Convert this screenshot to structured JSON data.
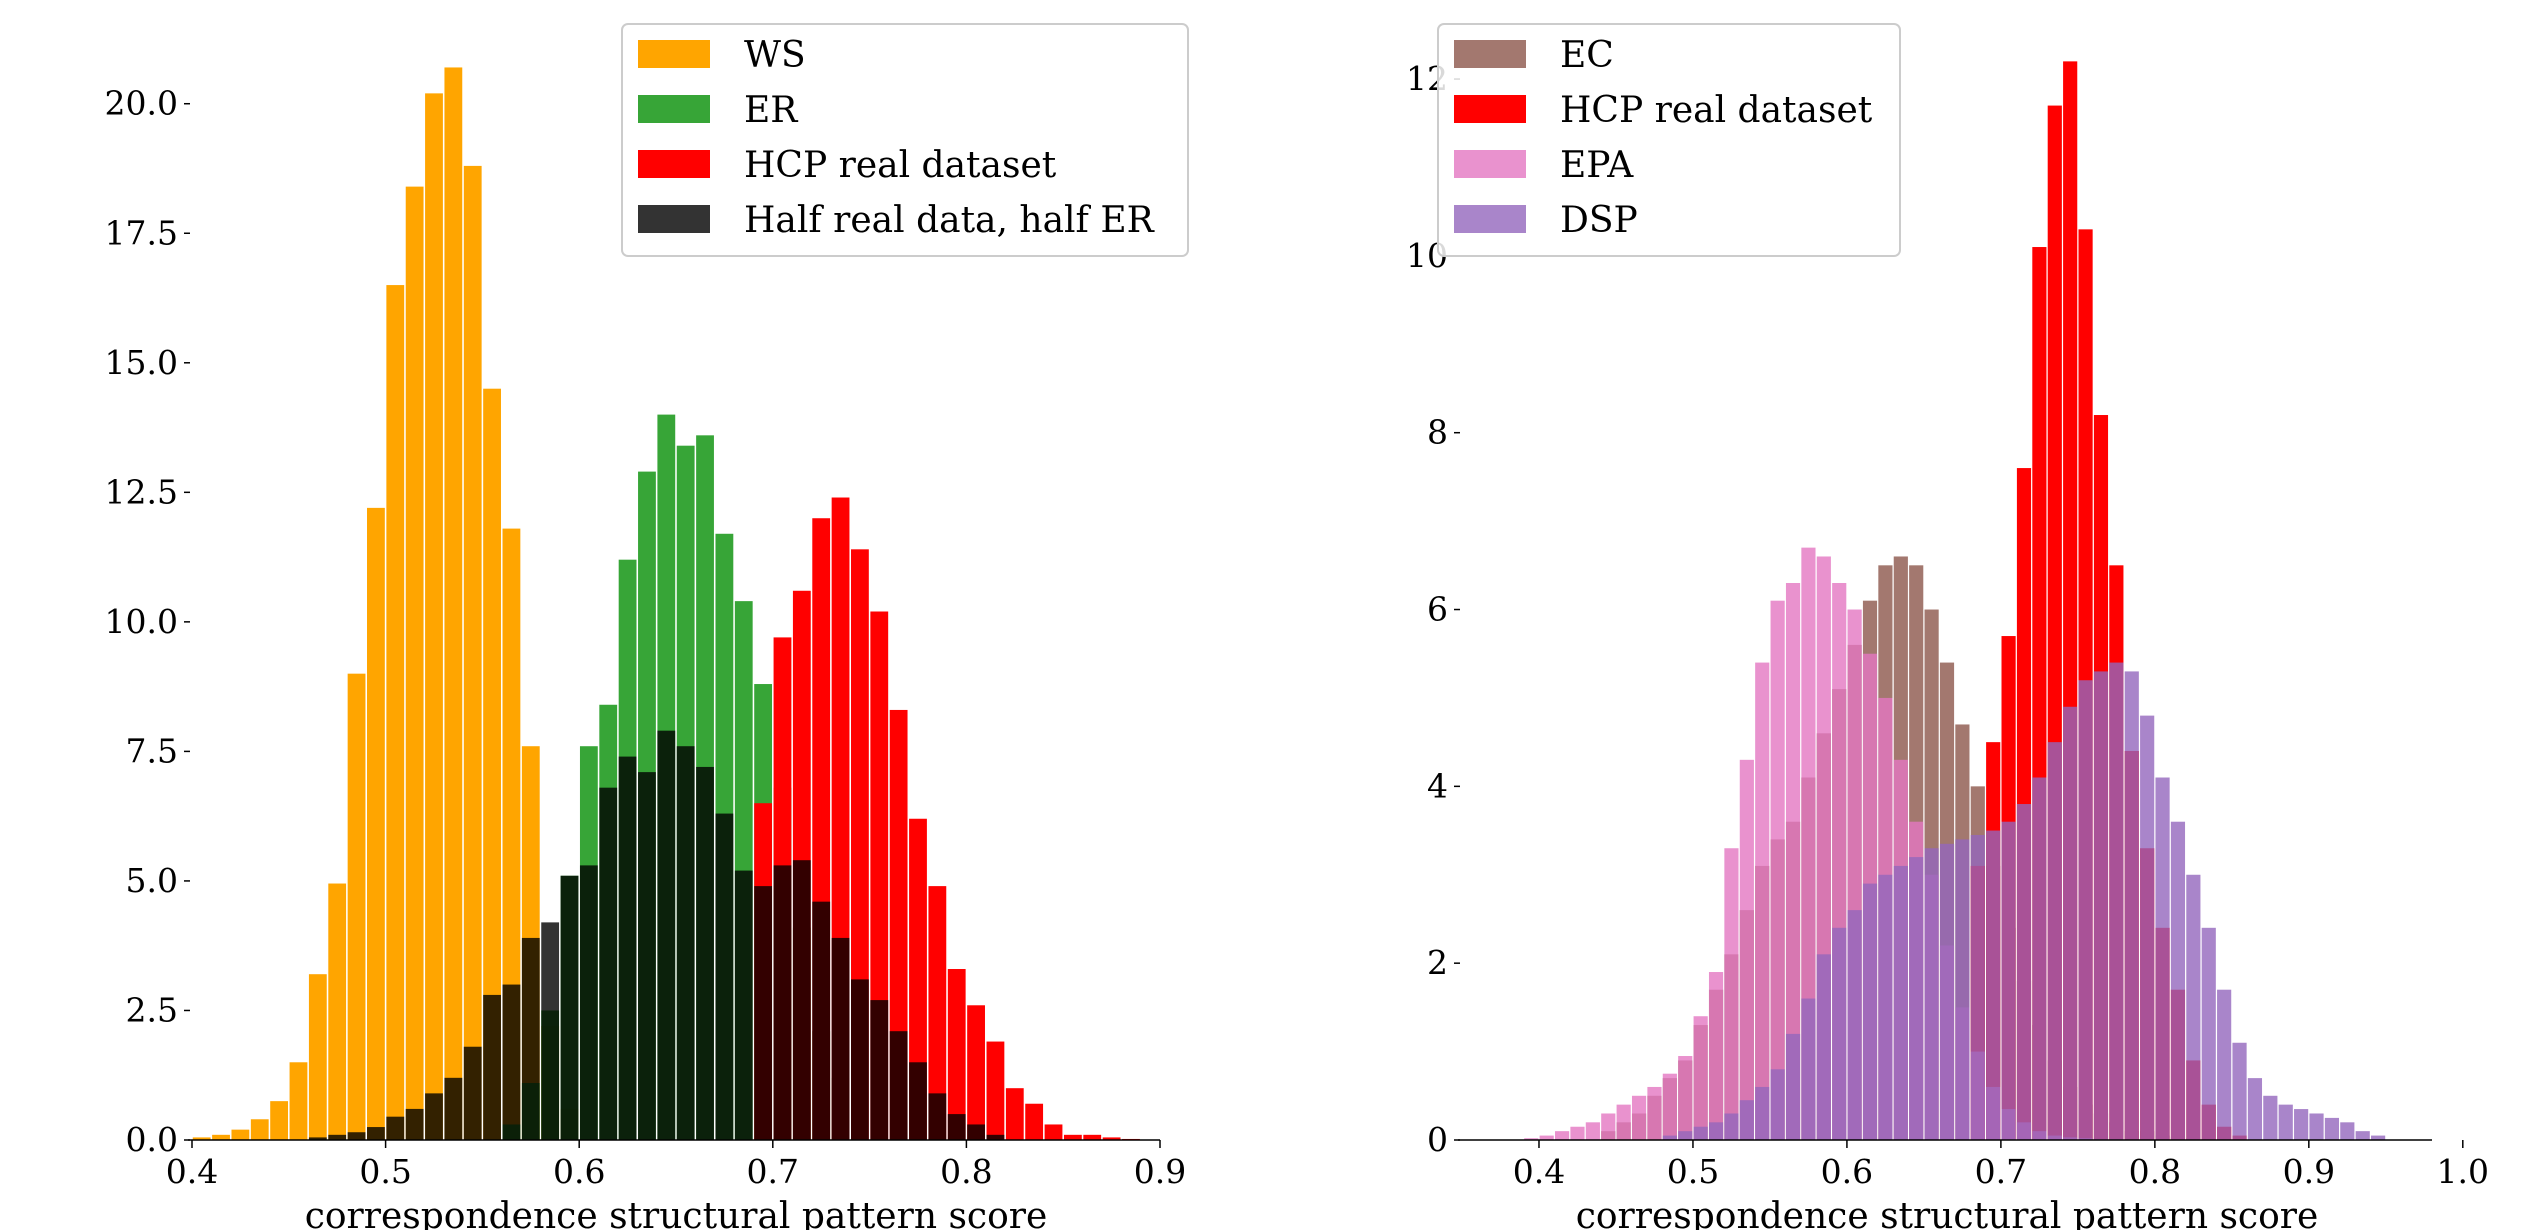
{
  "chart_data": [
    {
      "type": "bar",
      "title": "",
      "xlabel": "correspondence structural pattern score",
      "ylabel": "",
      "xlim": [
        0.4,
        0.9
      ],
      "ylim": [
        0,
        21.5
      ],
      "xticks": [
        "0.4",
        "0.5",
        "0.6",
        "0.7",
        "0.8",
        "0.9"
      ],
      "yticks": [
        "0.0",
        "2.5",
        "5.0",
        "7.5",
        "10.0",
        "12.5",
        "15.0",
        "17.5",
        "20.0"
      ],
      "grid": false,
      "legend_position": "top-center",
      "series": [
        {
          "name": "WS",
          "color": "#ffa500",
          "opacity": 1.0,
          "x": [
            0.405,
            0.415,
            0.425,
            0.435,
            0.445,
            0.455,
            0.465,
            0.475,
            0.485,
            0.495,
            0.505,
            0.515,
            0.525,
            0.535,
            0.545,
            0.555,
            0.565,
            0.575,
            0.585,
            0.595
          ],
          "values": [
            0.05,
            0.1,
            0.2,
            0.4,
            0.75,
            1.5,
            3.2,
            4.95,
            9.0,
            12.2,
            16.5,
            18.4,
            20.2,
            20.7,
            18.8,
            14.5,
            11.8,
            7.6,
            2.2,
            0.6
          ]
        },
        {
          "name": "ER",
          "color": "#2ca02c",
          "opacity": 0.95,
          "x": [
            0.565,
            0.575,
            0.585,
            0.595,
            0.605,
            0.615,
            0.625,
            0.635,
            0.645,
            0.655,
            0.665,
            0.675,
            0.685,
            0.695,
            0.705,
            0.715,
            0.725,
            0.735
          ],
          "values": [
            0.3,
            1.1,
            2.5,
            5.1,
            7.6,
            8.4,
            11.2,
            12.9,
            14.0,
            13.4,
            13.6,
            11.7,
            10.4,
            8.8,
            6.8,
            4.1,
            2.1,
            1.2
          ]
        },
        {
          "name": "HCP real dataset",
          "color": "#ff0000",
          "opacity": 1.0,
          "x": [
            0.695,
            0.705,
            0.715,
            0.725,
            0.735,
            0.745,
            0.755,
            0.765,
            0.775,
            0.785,
            0.795,
            0.805,
            0.815,
            0.825,
            0.835,
            0.845,
            0.855,
            0.865,
            0.875,
            0.885
          ],
          "values": [
            6.5,
            9.7,
            10.6,
            12.0,
            12.4,
            11.4,
            10.2,
            8.3,
            6.2,
            4.9,
            3.3,
            2.6,
            1.9,
            1.0,
            0.7,
            0.3,
            0.1,
            0.1,
            0.05,
            0.02
          ]
        },
        {
          "name": "Half real data, half ER",
          "color": "#000000",
          "opacity": 0.8,
          "x": [
            0.465,
            0.475,
            0.485,
            0.495,
            0.505,
            0.515,
            0.525,
            0.535,
            0.545,
            0.555,
            0.565,
            0.575,
            0.585,
            0.595,
            0.605,
            0.615,
            0.625,
            0.635,
            0.645,
            0.655,
            0.665,
            0.675,
            0.685,
            0.695,
            0.705,
            0.715,
            0.725,
            0.735,
            0.745,
            0.755,
            0.765,
            0.775,
            0.785,
            0.795,
            0.805,
            0.815
          ],
          "values": [
            0.05,
            0.1,
            0.15,
            0.25,
            0.45,
            0.6,
            0.9,
            1.2,
            1.8,
            2.8,
            3.0,
            3.9,
            4.2,
            5.1,
            5.3,
            6.8,
            7.4,
            7.1,
            7.9,
            7.6,
            7.2,
            6.3,
            5.2,
            4.9,
            5.3,
            5.4,
            4.6,
            3.9,
            3.1,
            2.7,
            2.1,
            1.5,
            0.9,
            0.5,
            0.3,
            0.1
          ]
        }
      ]
    },
    {
      "type": "bar",
      "title": "",
      "xlabel": "correspondence structural pattern score",
      "ylabel": "",
      "xlim": [
        0.35,
        0.98
      ],
      "ylim": [
        0,
        12.6
      ],
      "xticks": [
        "0.4",
        "0.5",
        "0.6",
        "0.7",
        "0.8",
        "0.9",
        "1.0"
      ],
      "yticks": [
        "0",
        "2",
        "4",
        "6",
        "8",
        "10",
        "12"
      ],
      "grid": false,
      "legend_position": "top-left",
      "series": [
        {
          "name": "EC",
          "color": "#8c564b",
          "opacity": 0.8,
          "x": [
            0.445,
            0.455,
            0.465,
            0.475,
            0.485,
            0.495,
            0.505,
            0.515,
            0.525,
            0.535,
            0.545,
            0.555,
            0.565,
            0.575,
            0.585,
            0.595,
            0.605,
            0.615,
            0.625,
            0.635,
            0.645,
            0.655,
            0.665,
            0.675,
            0.685,
            0.695,
            0.705,
            0.715,
            0.725,
            0.735,
            0.745,
            0.755,
            0.765,
            0.775,
            0.785,
            0.795,
            0.805,
            0.815,
            0.825
          ],
          "values": [
            0.1,
            0.2,
            0.3,
            0.5,
            0.7,
            0.9,
            1.3,
            1.7,
            2.1,
            2.6,
            3.1,
            3.4,
            3.6,
            4.1,
            4.6,
            5.1,
            5.6,
            6.1,
            6.5,
            6.6,
            6.5,
            6.0,
            5.4,
            4.7,
            4.0,
            3.1,
            2.4,
            1.8,
            1.3,
            0.9,
            0.6,
            0.4,
            0.3,
            0.2,
            0.1,
            0.1,
            0.05,
            0.03,
            0.02
          ]
        },
        {
          "name": "HCP real dataset",
          "color": "#ff0000",
          "opacity": 1.0,
          "x": [
            0.685,
            0.695,
            0.705,
            0.715,
            0.725,
            0.735,
            0.745,
            0.755,
            0.765,
            0.775,
            0.785,
            0.795,
            0.805,
            0.815,
            0.825,
            0.835,
            0.845,
            0.855
          ],
          "values": [
            3.1,
            4.5,
            5.7,
            7.6,
            10.1,
            11.7,
            12.2,
            10.3,
            8.2,
            6.5,
            4.4,
            3.3,
            2.4,
            1.7,
            0.9,
            0.4,
            0.15,
            0.05
          ]
        },
        {
          "name": "EPA",
          "color": "#e377c2",
          "opacity": 0.8,
          "x": [
            0.395,
            0.405,
            0.415,
            0.425,
            0.435,
            0.445,
            0.455,
            0.465,
            0.475,
            0.485,
            0.495,
            0.505,
            0.515,
            0.525,
            0.535,
            0.545,
            0.555,
            0.565,
            0.575,
            0.585,
            0.595,
            0.605,
            0.615,
            0.625,
            0.635,
            0.645,
            0.655,
            0.665,
            0.675,
            0.685,
            0.695,
            0.705,
            0.715,
            0.725,
            0.735,
            0.745,
            0.755,
            0.765,
            0.775
          ],
          "values": [
            0.02,
            0.05,
            0.1,
            0.15,
            0.2,
            0.3,
            0.4,
            0.5,
            0.6,
            0.75,
            0.95,
            1.4,
            1.9,
            3.3,
            4.3,
            5.4,
            6.1,
            6.3,
            6.7,
            6.6,
            6.3,
            6.0,
            5.5,
            5.0,
            4.3,
            3.6,
            3.0,
            2.2,
            1.5,
            1.0,
            0.6,
            0.35,
            0.2,
            0.1,
            0.05,
            0.03,
            0.02,
            0.01,
            0.01
          ]
        },
        {
          "name": "DSP",
          "color": "#9467bd",
          "opacity": 0.8,
          "x": [
            0.485,
            0.495,
            0.505,
            0.515,
            0.525,
            0.535,
            0.545,
            0.555,
            0.565,
            0.575,
            0.585,
            0.595,
            0.605,
            0.615,
            0.625,
            0.635,
            0.645,
            0.655,
            0.665,
            0.675,
            0.685,
            0.695,
            0.705,
            0.715,
            0.725,
            0.735,
            0.745,
            0.755,
            0.765,
            0.775,
            0.785,
            0.795,
            0.805,
            0.815,
            0.825,
            0.835,
            0.845,
            0.855,
            0.865,
            0.875,
            0.885,
            0.895,
            0.905,
            0.915,
            0.925,
            0.935,
            0.945
          ],
          "values": [
            0.05,
            0.1,
            0.15,
            0.2,
            0.3,
            0.45,
            0.6,
            0.8,
            1.2,
            1.6,
            2.1,
            2.4,
            2.6,
            2.9,
            3.0,
            3.1,
            3.2,
            3.3,
            3.35,
            3.4,
            3.45,
            3.5,
            3.6,
            3.8,
            4.1,
            4.5,
            4.9,
            5.2,
            5.3,
            5.4,
            5.3,
            4.8,
            4.1,
            3.6,
            3.0,
            2.4,
            1.7,
            1.1,
            0.7,
            0.5,
            0.4,
            0.35,
            0.3,
            0.25,
            0.2,
            0.1,
            0.05
          ]
        }
      ]
    }
  ]
}
